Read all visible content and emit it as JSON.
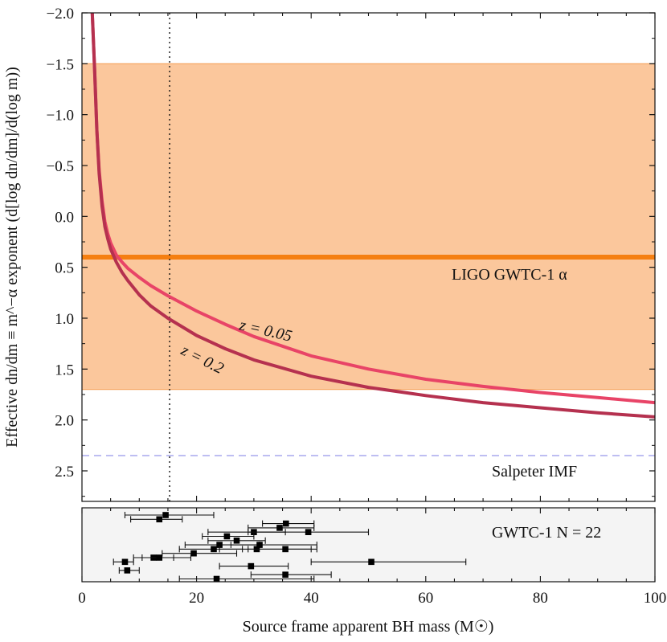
{
  "chart_data": [
    {
      "type": "line",
      "xlabel": "Source frame apparent BH mass (M☉)",
      "ylabel": "Effective dn/dm ≡ m^−α exponent (d[log dn/dm]/d(log m))",
      "xlim": [
        0,
        100
      ],
      "ylim": [
        2.8,
        -2.0
      ],
      "y_inverted": true,
      "grid": false,
      "x_ticks": [
        "0",
        "20",
        "40",
        "60",
        "80",
        "100"
      ],
      "y_ticks": [
        "−2.0",
        "−1.5",
        "−1.0",
        "−0.5",
        "0.0",
        "0.5",
        "1.0",
        "1.5",
        "2.0",
        "2.5"
      ],
      "band": {
        "label": "LIGO GWTC-1 α",
        "low": -1.5,
        "high": 1.7,
        "center": 0.4,
        "color": "#fbc79c",
        "edge_color": "#f5a25b",
        "line_color": "#f57f11"
      },
      "reference_line": {
        "label": "Salpeter IMF",
        "value": 2.35,
        "color": "#a9a9ee"
      },
      "vertical_marker": {
        "x": 15.3
      },
      "series": [
        {
          "name": "z = 0.05",
          "color": "#e84467",
          "x": [
            1.8,
            2.2,
            2.6,
            3.0,
            3.5,
            4.0,
            4.5,
            5.0,
            6.0,
            7.0,
            8.0,
            10.0,
            12.0,
            15.0,
            20.0,
            25.0,
            30.0,
            40.0,
            50.0,
            60.0,
            70.0,
            80.0,
            90.0,
            100.0
          ],
          "y": [
            -2.0,
            -1.45,
            -0.85,
            -0.45,
            -0.15,
            0.05,
            0.17,
            0.26,
            0.38,
            0.45,
            0.51,
            0.6,
            0.68,
            0.78,
            0.93,
            1.06,
            1.18,
            1.37,
            1.5,
            1.6,
            1.67,
            1.73,
            1.78,
            1.83
          ]
        },
        {
          "name": "z = 0.2",
          "color": "#b5314f",
          "x": [
            1.8,
            2.2,
            2.6,
            3.0,
            3.5,
            4.0,
            4.5,
            5.0,
            6.0,
            7.0,
            8.0,
            10.0,
            12.0,
            15.0,
            20.0,
            25.0,
            30.0,
            40.0,
            50.0,
            60.0,
            70.0,
            80.0,
            90.0,
            100.0
          ],
          "y": [
            -2.0,
            -1.45,
            -0.85,
            -0.42,
            -0.1,
            0.1,
            0.22,
            0.32,
            0.45,
            0.55,
            0.63,
            0.77,
            0.88,
            1.0,
            1.17,
            1.3,
            1.41,
            1.57,
            1.68,
            1.76,
            1.83,
            1.88,
            1.93,
            1.97
          ]
        }
      ],
      "annotations": [
        "LIGO GWTC-1 α",
        "z = 0.05",
        "z = 0.2",
        "Salpeter IMF"
      ]
    },
    {
      "type": "scatter",
      "label": "GWTC-1 N = 22",
      "xlim": [
        0,
        100
      ],
      "points": [
        {
          "x": 14.6,
          "row": 0,
          "xlo": 7.5,
          "xhi": 23.0
        },
        {
          "x": 13.5,
          "row": 1,
          "xlo": 8.5,
          "xhi": 17.5
        },
        {
          "x": 35.6,
          "row": 2,
          "xlo": 31.5,
          "xhi": 40.5
        },
        {
          "x": 34.5,
          "row": 3,
          "xlo": 29.0,
          "xhi": 40.5
        },
        {
          "x": 30.0,
          "row": 4,
          "xlo": 22.0,
          "xhi": 35.5
        },
        {
          "x": 39.5,
          "row": 4,
          "xlo": 29.0,
          "xhi": 50.0
        },
        {
          "x": 25.3,
          "row": 5,
          "xlo": 21.0,
          "xhi": 30.0
        },
        {
          "x": 27.0,
          "row": 6,
          "xlo": 22.0,
          "xhi": 32.0
        },
        {
          "x": 24.0,
          "row": 7,
          "xlo": 18.0,
          "xhi": 31.0
        },
        {
          "x": 31.0,
          "row": 7,
          "xlo": 26.0,
          "xhi": 41.0
        },
        {
          "x": 23.0,
          "row": 8,
          "xlo": 17.0,
          "xhi": 28.0
        },
        {
          "x": 30.5,
          "row": 8,
          "xlo": 24.0,
          "xhi": 40.0
        },
        {
          "x": 35.5,
          "row": 8,
          "xlo": 29.0,
          "xhi": 41.0
        },
        {
          "x": 19.5,
          "row": 9,
          "xlo": 14.0,
          "xhi": 27.0
        },
        {
          "x": 12.5,
          "row": 10,
          "xlo": 9.0,
          "xhi": 16.0
        },
        {
          "x": 13.5,
          "row": 10,
          "xlo": 10.5,
          "xhi": 19.0
        },
        {
          "x": 7.5,
          "row": 11,
          "xlo": 5.5,
          "xhi": 9.0
        },
        {
          "x": 50.5,
          "row": 11,
          "xlo": 40.0,
          "xhi": 67.0
        },
        {
          "x": 29.5,
          "row": 12,
          "xlo": 24.0,
          "xhi": 36.0
        },
        {
          "x": 7.9,
          "row": 13,
          "xlo": 6.5,
          "xhi": 10.0
        },
        {
          "x": 35.5,
          "row": 14,
          "xlo": 29.5,
          "xhi": 43.5
        },
        {
          "x": 23.5,
          "row": 15,
          "xlo": 17.0,
          "xhi": 40.5
        }
      ]
    }
  ]
}
